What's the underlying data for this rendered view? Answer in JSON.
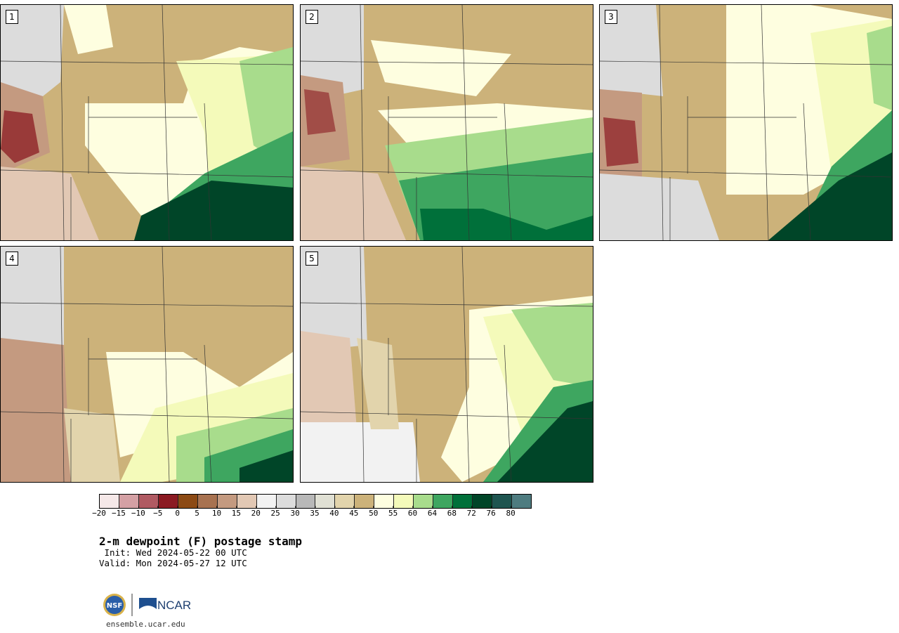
{
  "panels": [
    {
      "label": "1"
    },
    {
      "label": "2"
    },
    {
      "label": "3"
    },
    {
      "label": "4"
    },
    {
      "label": "5"
    }
  ],
  "colorbar": {
    "colors": [
      "#f5e8e8",
      "#d4a0a4",
      "#b05a62",
      "#8b1a22",
      "#8c4a14",
      "#a87250",
      "#c49a80",
      "#e2c8b4",
      "#f2f2f2",
      "#dcdcdc",
      "#b8b8b8",
      "#e0e0d4",
      "#e2d4ac",
      "#ccb27a",
      "#fefee0",
      "#f4faba",
      "#a8dc8c",
      "#3ea660",
      "#00703a",
      "#004528",
      "#1e5550",
      "#4e7c80"
    ],
    "tick_labels": [
      "−20",
      "−15",
      "−10",
      "−5",
      "0",
      "5",
      "10",
      "15",
      "20",
      "25",
      "30",
      "35",
      "40",
      "45",
      "50",
      "55",
      "60",
      "64",
      "68",
      "72",
      "76",
      "80"
    ]
  },
  "title": "2-m dewpoint (F) postage stamp",
  "init": " Init: Wed 2024-05-22 00 UTC",
  "valid": "Valid: Mon 2024-05-27 12 UTC",
  "logos": {
    "nsf": "NSF",
    "ncar": "NCAR"
  },
  "footer_url": "ensemble.ucar.edu"
}
